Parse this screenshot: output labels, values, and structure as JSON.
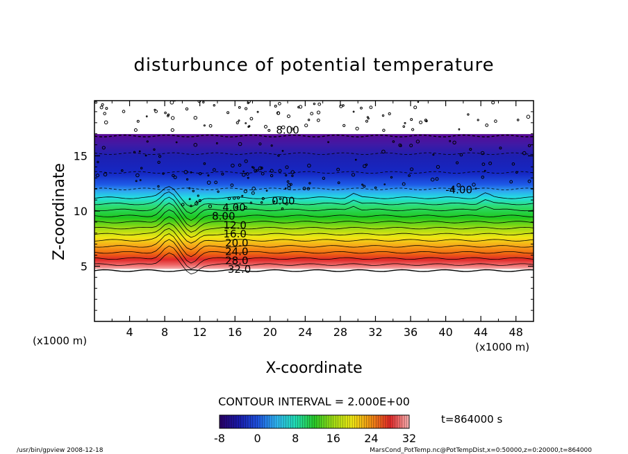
{
  "title": "disturbunce of potential temperature",
  "footer_left": "/usr/bin/gpview   2008-12-18",
  "footer_right": "MarsCond_PotTemp.nc@PotTempDist,x=0:50000,z=0:20000,t=864000",
  "time_label": "t=864000 s",
  "contour_interval_label": "CONTOUR INTERVAL = 2.000E+00",
  "chart_data": {
    "type": "heatmap",
    "xlabel": "X-coordinate",
    "ylabel": "Z-coordinate",
    "x_unit_label_left": "(x1000 m)",
    "x_unit_label_right": "(x1000 m)",
    "xlim": [
      0,
      50
    ],
    "ylim": [
      0,
      20
    ],
    "x_ticks": [
      "4",
      "8",
      "12",
      "16",
      "20",
      "24",
      "28",
      "32",
      "36",
      "40",
      "44",
      "48"
    ],
    "x_tick_values": [
      4,
      8,
      12,
      16,
      20,
      24,
      28,
      32,
      36,
      40,
      44,
      48
    ],
    "y_ticks": [
      "5",
      "10",
      "15"
    ],
    "y_tick_values": [
      5,
      10,
      15
    ],
    "contour_interval": 2.0,
    "contour_labels": [
      {
        "text": "8.00",
        "x": 22.0,
        "z": 17.0
      },
      {
        "text": "-4.00",
        "x": 41.5,
        "z": 11.6
      },
      {
        "text": "0.00",
        "x": 21.5,
        "z": 10.6
      },
      {
        "text": "4.00",
        "x": 15.9,
        "z": 10.0
      },
      {
        "text": "8.00",
        "x": 14.7,
        "z": 9.2
      },
      {
        "text": "12.0",
        "x": 16.0,
        "z": 8.4
      },
      {
        "text": "16.0",
        "x": 16.0,
        "z": 7.6
      },
      {
        "text": "20.0",
        "x": 16.2,
        "z": 6.8
      },
      {
        "text": "24.0",
        "x": 16.2,
        "z": 6.0
      },
      {
        "text": "28.0",
        "x": 16.2,
        "z": 5.2
      },
      {
        "text": "32.0",
        "x": 16.5,
        "z": 4.4
      }
    ],
    "colorbar": {
      "ticks": [
        "-8",
        "0",
        "8",
        "16",
        "24",
        "32"
      ],
      "tick_values": [
        -8,
        0,
        8,
        16,
        24,
        32
      ],
      "range": [
        -8,
        32
      ]
    }
  }
}
